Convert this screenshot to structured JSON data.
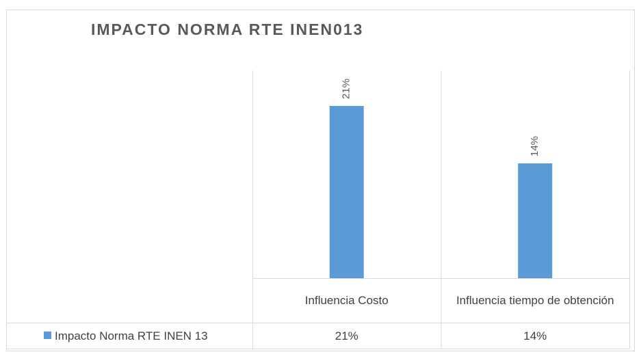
{
  "chart_data": {
    "type": "bar",
    "title": "IMPACTO NORMA RTE INEN013",
    "categories": [
      "Influencia Costo",
      "Influencia tiempo de obtención"
    ],
    "series": [
      {
        "name": "Impacto Norma RTE INEN 13",
        "color": "#5b9bd5",
        "values": [
          21,
          14
        ],
        "value_labels": [
          "21%",
          "14%"
        ]
      }
    ],
    "ylim": [
      0,
      25
    ]
  }
}
